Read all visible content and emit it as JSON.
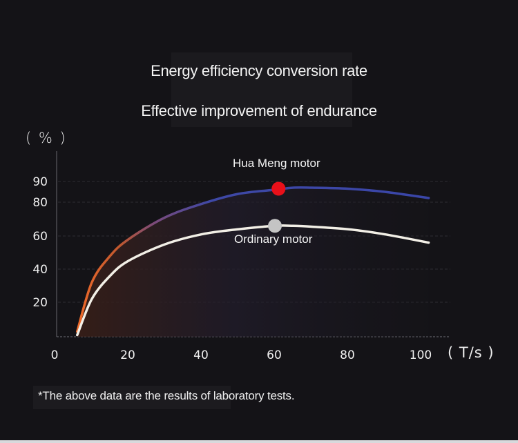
{
  "titles": {
    "line1": "Energy efficiency conversion rate",
    "line2": "Effective improvement of endurance"
  },
  "footnote": "*The above data are the results of laboratory tests.",
  "colors": {
    "background": "#141317",
    "hua_meng_line": "#3a46a8",
    "hua_meng_line_start": "#e0602a",
    "ordinary_line": "#f2efe6",
    "hua_meng_marker": "#e8101a",
    "ordinary_marker": "#c4c4c4",
    "grid": "#2e2d33"
  },
  "chart_data": {
    "type": "line",
    "title": "Energy efficiency conversion rate",
    "subtitle": "Effective improvement of endurance",
    "xlabel": "( T/s )",
    "ylabel": "( % )",
    "xlim": [
      0,
      110
    ],
    "ylim": [
      0,
      95
    ],
    "x_ticks": [
      0,
      20,
      40,
      60,
      80,
      100
    ],
    "y_ticks": [
      20,
      40,
      60,
      80,
      90
    ],
    "grid": true,
    "legend": "inline-labels",
    "series": [
      {
        "name": "Hua Meng motor",
        "x": [
          6,
          10,
          15,
          20,
          30,
          40,
          50,
          60,
          65,
          70,
          80,
          90,
          102
        ],
        "values": [
          3,
          32,
          48,
          58,
          71,
          79,
          84,
          86,
          87,
          87,
          86.5,
          85,
          82
        ],
        "marker": {
          "x": 61,
          "y": 86.5
        }
      },
      {
        "name": "Ordinary motor",
        "x": [
          6,
          10,
          15,
          20,
          30,
          40,
          50,
          60,
          65,
          70,
          80,
          90,
          102
        ],
        "values": [
          1,
          22,
          36,
          45,
          55,
          61,
          64,
          66,
          66,
          65.5,
          64,
          61,
          56
        ],
        "marker": {
          "x": 60,
          "y": 66
        }
      }
    ]
  }
}
